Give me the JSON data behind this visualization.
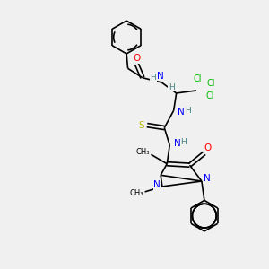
{
  "background_color": "#f0f0f0",
  "atom_colors": {
    "C": "#000000",
    "N": "#0000ff",
    "O": "#ff0000",
    "S": "#b8b800",
    "Cl": "#00bb00",
    "H": "#408080"
  },
  "bond_color": "#000000",
  "bond_width": 1.2,
  "figsize": [
    3.0,
    3.0
  ],
  "dpi": 100
}
